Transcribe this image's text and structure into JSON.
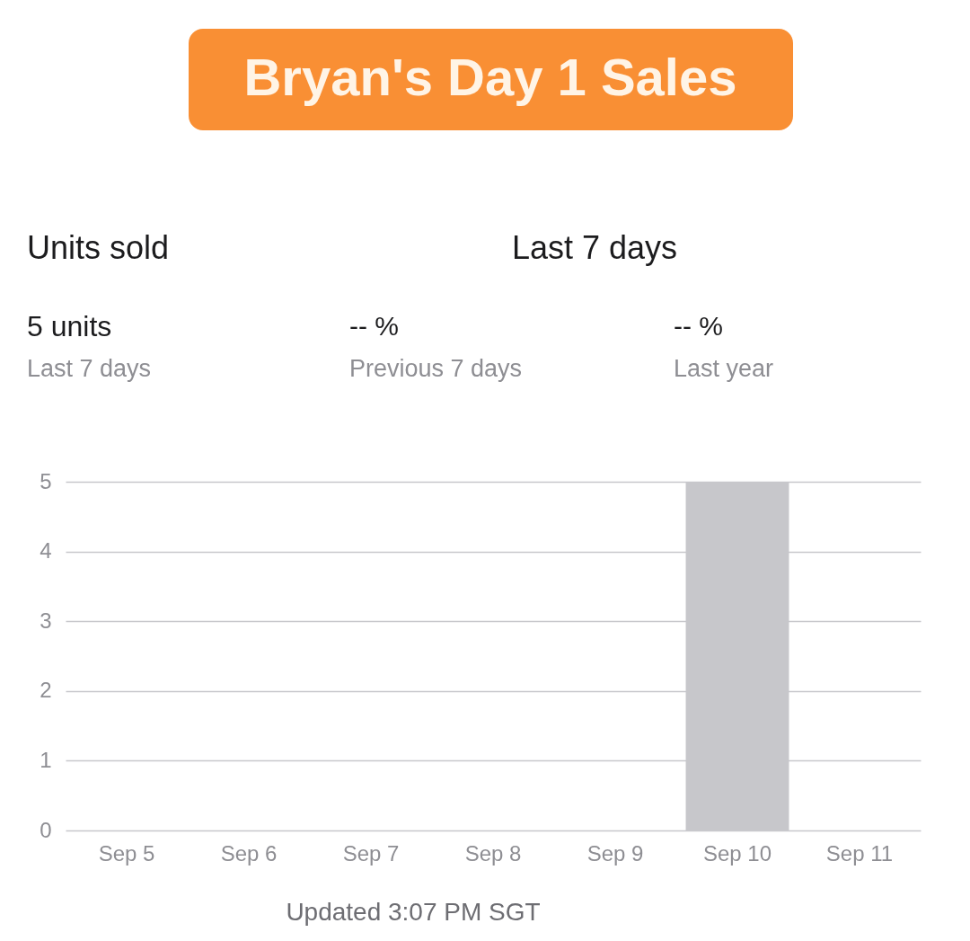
{
  "chart_data": {
    "type": "bar",
    "title": "Bryan's Day 1 Sales",
    "categories": [
      "Sep 5",
      "Sep 6",
      "Sep 7",
      "Sep 8",
      "Sep 9",
      "Sep 10",
      "Sep 11"
    ],
    "values": [
      0,
      0,
      0,
      0,
      0,
      5,
      0
    ],
    "color": "#c7c7cb",
    "ylim": [
      0,
      5
    ],
    "yticks": [
      0,
      1,
      2,
      3,
      4,
      5
    ],
    "grid": "y",
    "annotations": [
      "Units sold",
      "Last 7 days",
      "5 units",
      "Last 7 days",
      "-- %",
      "Previous 7 days",
      "-- %",
      "Last year",
      "Updated 3:07 PM SGT"
    ]
  }
}
